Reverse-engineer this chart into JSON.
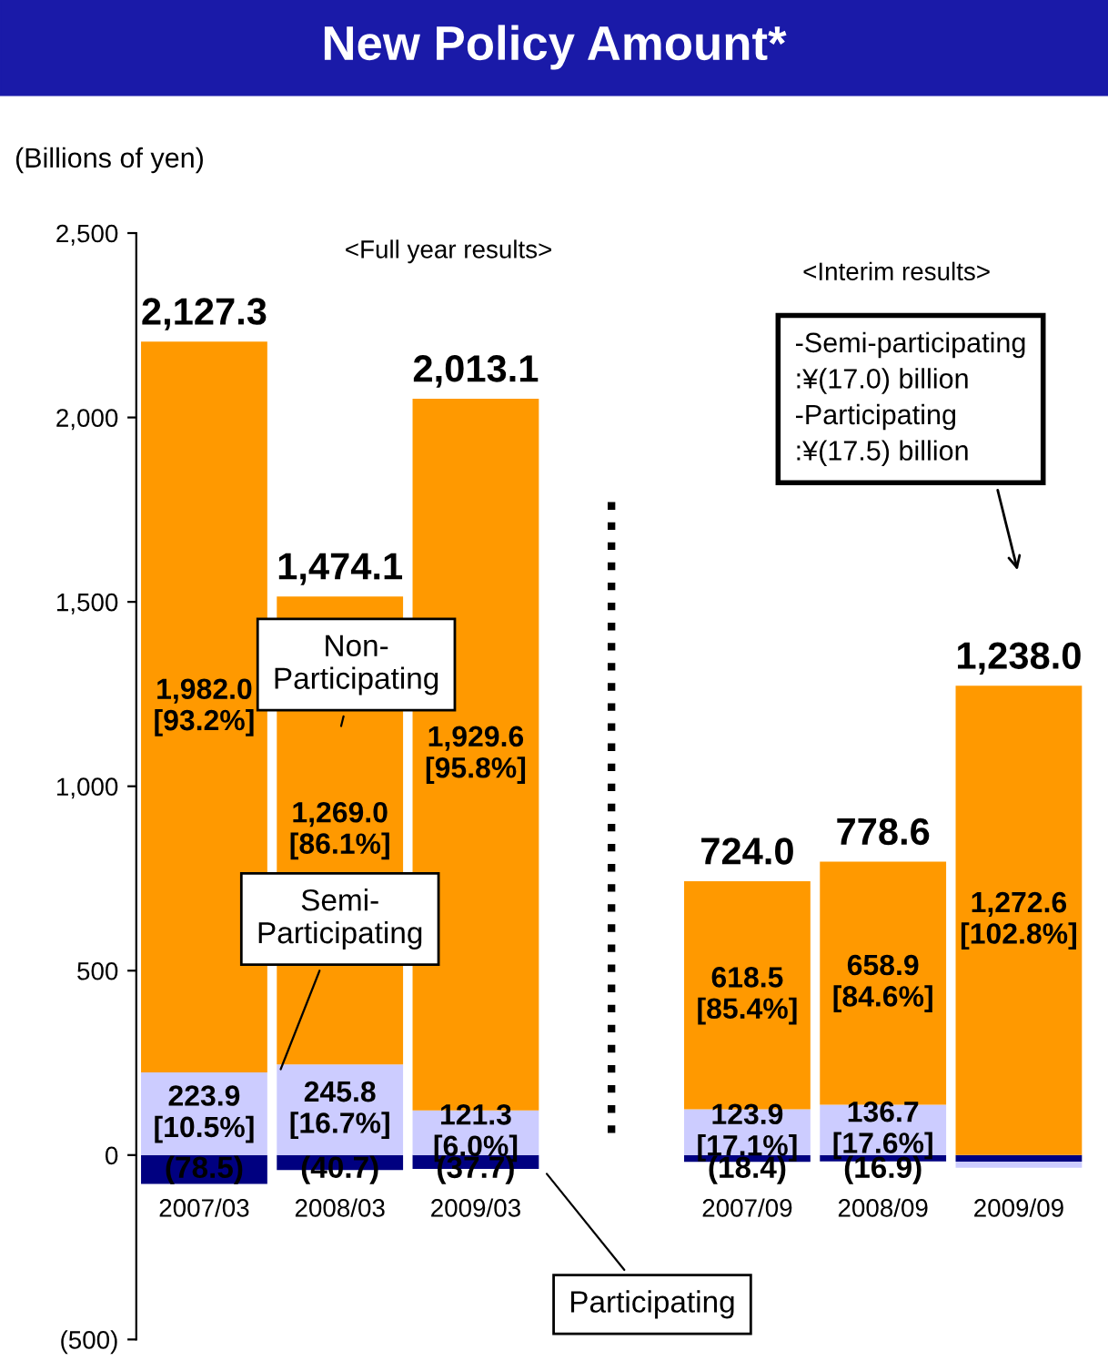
{
  "chart_data": {
    "type": "bar",
    "stacked": true,
    "title": "New Policy Amount*",
    "ylabel": "(Billions of yen)",
    "categories": [
      "2007/03",
      "2008/03",
      "2009/03",
      null,
      "2007/09",
      "2008/09",
      "2009/09"
    ],
    "series": [
      {
        "name": "Participating",
        "color": "#000080",
        "values": [
          -78.5,
          -40.7,
          -37.7,
          null,
          -18.4,
          -16.9,
          -17.5
        ],
        "value_labels": [
          "(78.5)",
          "(40.7)",
          "(37.7)",
          null,
          "(18.4)",
          "(16.9)",
          null
        ]
      },
      {
        "name": "Semi-\nParticipating",
        "color": "#ccccff",
        "values": [
          223.9,
          245.8,
          121.3,
          null,
          123.9,
          136.7,
          -17.0
        ],
        "value_labels": [
          "223.9\n[10.5%]",
          "245.8\n[16.7%]",
          "121.3\n[6.0%]",
          null,
          "123.9\n[17.1%]",
          "136.7\n[17.6%]",
          null
        ]
      },
      {
        "name": "Non-\nParticipating",
        "color": "#ff9900",
        "values": [
          1982.0,
          1269.0,
          1929.6,
          null,
          618.5,
          658.9,
          1272.6
        ],
        "value_labels": [
          "1,982.0\n[93.2%]",
          "1,269.0\n[86.1%]",
          "1,929.6\n[95.8%]",
          null,
          "618.5\n[85.4%]",
          "658.9\n[84.6%]",
          "1,272.6\n[102.8%]"
        ]
      }
    ],
    "totals": [
      "2,127.3",
      "1,474.1",
      "2,013.1",
      null,
      "724.0",
      "778.6",
      "1,238.0"
    ],
    "ylim": [
      -500,
      2500
    ],
    "yticks": [
      {
        "value": -500,
        "label": "(500)"
      },
      {
        "value": 0,
        "label": "0"
      },
      {
        "value": 500,
        "label": "500"
      },
      {
        "value": 1000,
        "label": "1,000"
      },
      {
        "value": 1500,
        "label": "1,500"
      },
      {
        "value": 2000,
        "label": "2,000"
      },
      {
        "value": 2500,
        "label": "2,500"
      }
    ],
    "annotations": [
      "<Full year results>",
      "<Interim results>",
      "-Semi-participating\n:¥(17.0) billion\n-Participating\n:¥(17.5) billion"
    ],
    "grid": false,
    "legend": false
  }
}
